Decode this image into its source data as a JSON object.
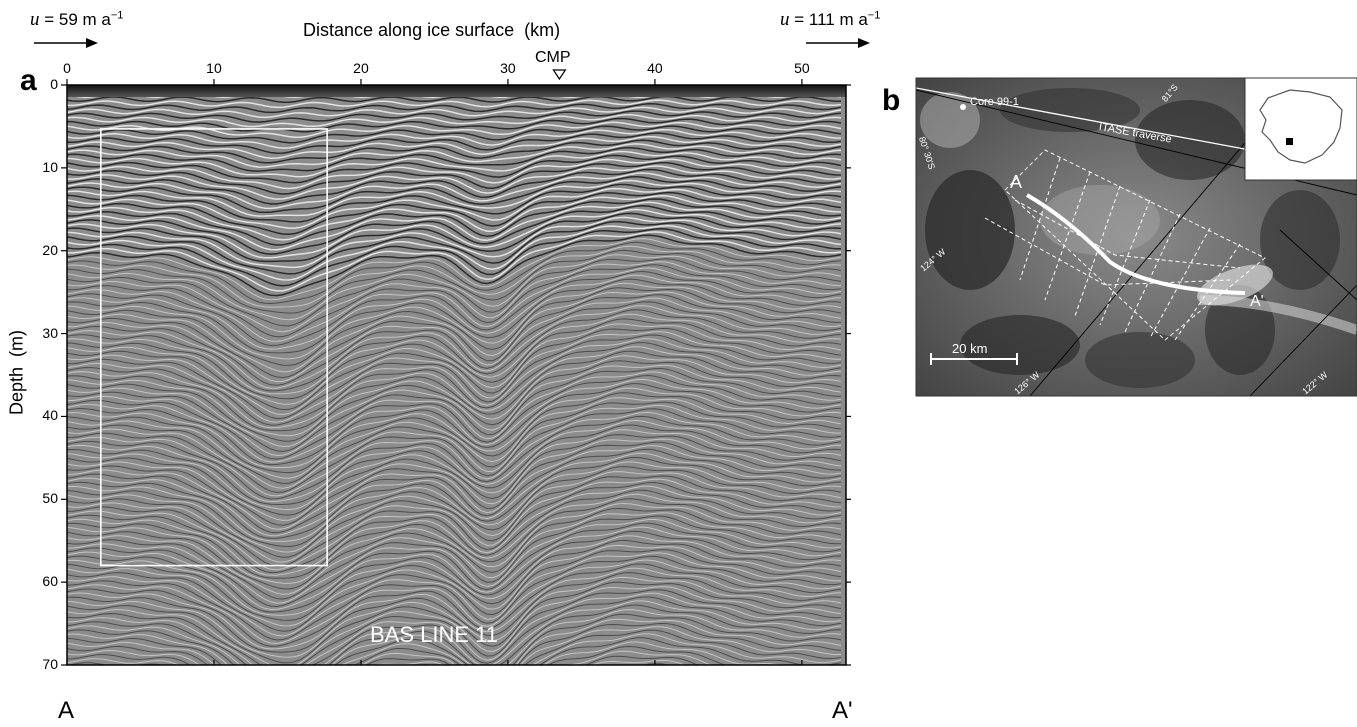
{
  "panel_a": {
    "letter": "a",
    "x_axis_title": "Distance along ice surface  (km)",
    "y_axis_title": "Depth  (m)",
    "x_ticks": [
      "0",
      "10",
      "20",
      "30",
      "40",
      "50"
    ],
    "x_tick_values": [
      0,
      10,
      20,
      30,
      40,
      50
    ],
    "y_ticks": [
      "0",
      "10",
      "20",
      "30",
      "40",
      "50",
      "60",
      "70"
    ],
    "y_tick_values": [
      0,
      10,
      20,
      30,
      40,
      50,
      60,
      70
    ],
    "left_velocity": {
      "var": "u",
      "text": " = 59 m a",
      "exp": "−1"
    },
    "right_velocity": {
      "var": "u",
      "text": " = 111 m a",
      "exp": "−1"
    },
    "cmp_label": "CMP",
    "cmp_km": 33.5,
    "line_name": "BAS LINE 11",
    "end_left": "A",
    "end_right": "A'",
    "x_range_km": [
      0,
      53
    ],
    "y_range_m": [
      0,
      70
    ],
    "highlight_box": {
      "x_km": [
        2.3,
        17.7
      ],
      "depth_m": [
        5.3,
        58
      ]
    }
  },
  "panel_b": {
    "letter": "b",
    "core_label": "Core 99-1",
    "traverse_label": "ITASE traverse",
    "lat_labels": [
      "81°S",
      "80° 30'S"
    ],
    "lon_labels": [
      "124° W",
      "126° W",
      "122° W"
    ],
    "point_a": "A",
    "point_a_prime": "A'",
    "scale_label": "20 km"
  }
}
